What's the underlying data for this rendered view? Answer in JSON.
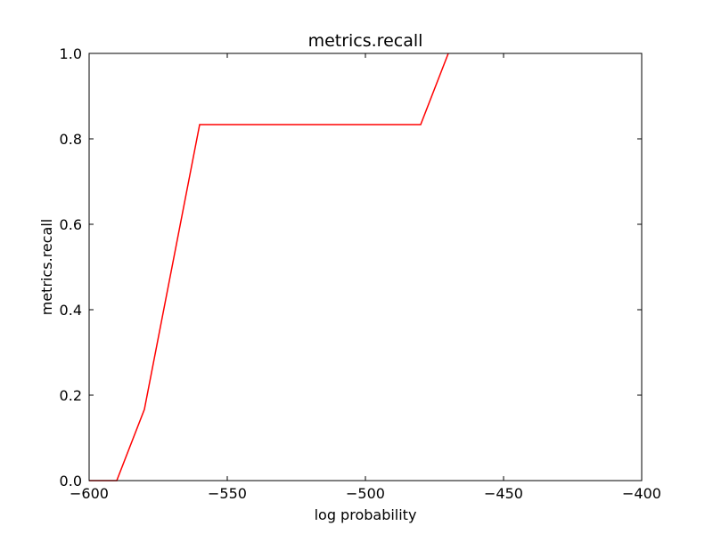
{
  "chart_data": {
    "type": "line",
    "title": "metrics.recall",
    "xlabel": "log probability",
    "ylabel": "metrics.recall",
    "xlim": [
      -600,
      -400
    ],
    "ylim": [
      0,
      1.0
    ],
    "xticks": [
      -600,
      -550,
      -500,
      -450,
      -400
    ],
    "xtick_labels": [
      "−600",
      "−550",
      "−500",
      "−450",
      "−400"
    ],
    "yticks": [
      0.0,
      0.2,
      0.4,
      0.6,
      0.8,
      1.0
    ],
    "ytick_labels": [
      "0.0",
      "0.2",
      "0.4",
      "0.6",
      "0.8",
      "1.0"
    ],
    "grid": false,
    "series": [
      {
        "color": "#ff0000",
        "x": [
          -600,
          -590,
          -580,
          -560,
          -480,
          -470
        ],
        "y": [
          0.0,
          0.0,
          0.1667,
          0.8333,
          0.8333,
          1.0
        ]
      }
    ]
  }
}
